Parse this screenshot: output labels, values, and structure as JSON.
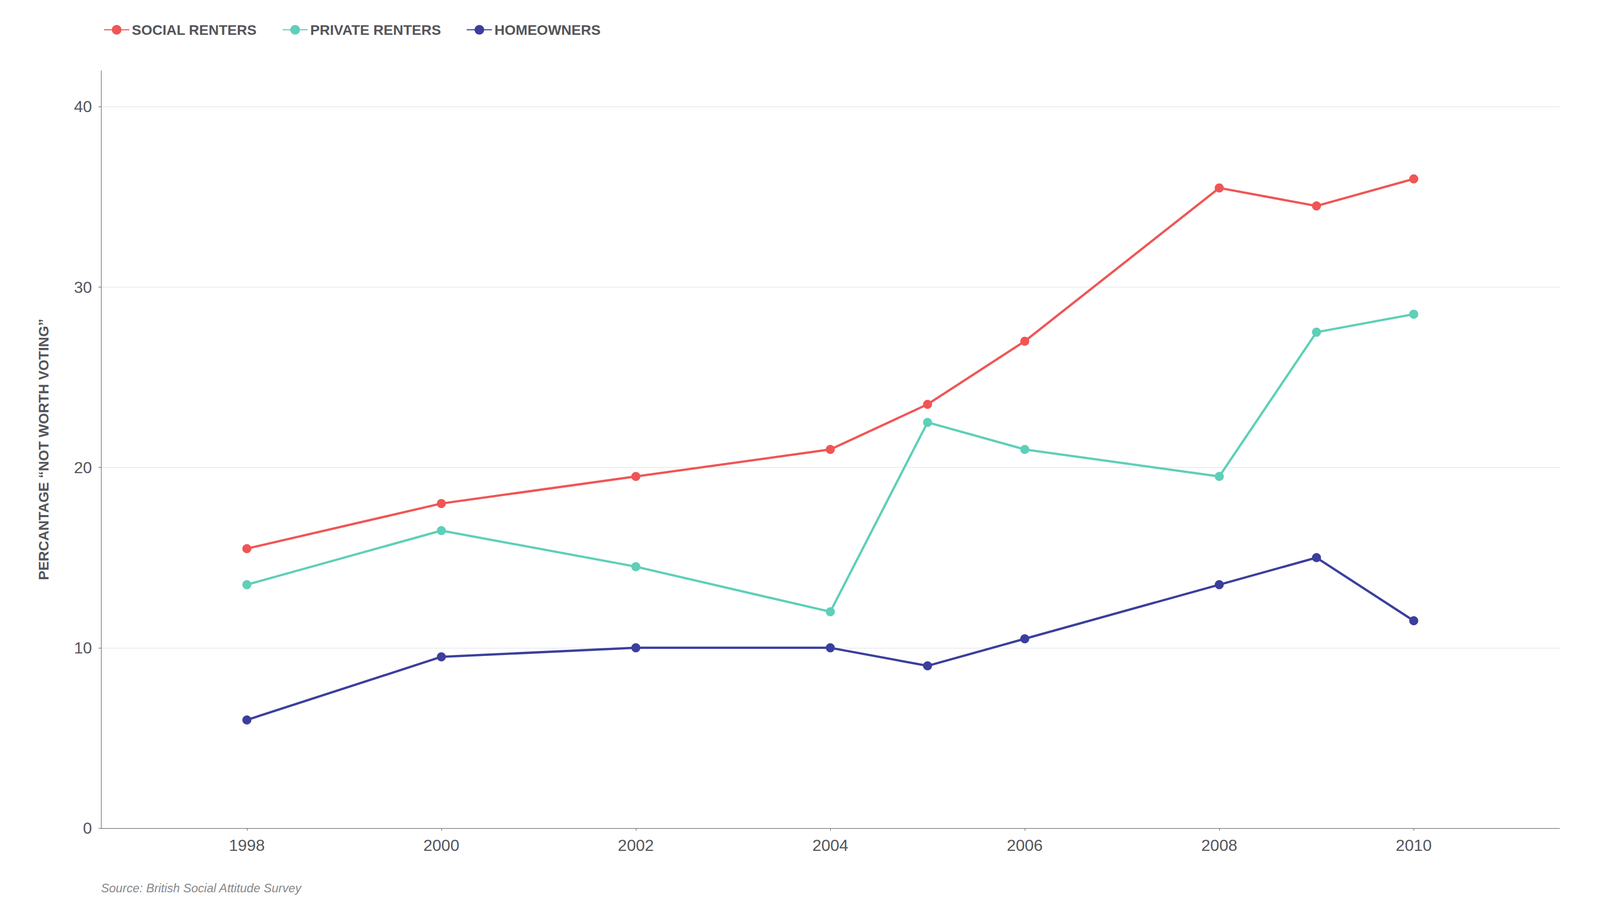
{
  "chart_data": {
    "type": "line",
    "y_label": "PERCANTAGE “NOT WORTH VOTING”",
    "annotations": [
      "Source: British Social Attitude Survey"
    ],
    "x": [
      1998,
      2000,
      2002,
      2004,
      2005,
      2006,
      2008,
      2009,
      2010
    ],
    "series": [
      {
        "name": "SOCIAL RENTERS",
        "color": "#F05555",
        "values": [
          15.5,
          18.0,
          19.5,
          21.0,
          23.5,
          27.0,
          35.5,
          34.5,
          36.0
        ]
      },
      {
        "name": "PRIVATE RENTERS",
        "color": "#5ECFB8",
        "values": [
          13.5,
          16.5,
          14.5,
          12.0,
          22.5,
          21.0,
          19.5,
          27.5,
          28.5
        ]
      },
      {
        "name": "HOMEOWNERS",
        "color": "#3B3F9C",
        "values": [
          6.0,
          9.5,
          10.0,
          10.0,
          9.0,
          10.5,
          13.5,
          15.0,
          11.5
        ]
      }
    ],
    "xlim": [
      1996.5,
      2011.5
    ],
    "xticks": [
      1998,
      2000,
      2002,
      2004,
      2006,
      2008,
      2010
    ],
    "ylim": [
      0,
      42
    ],
    "yticks": [
      0,
      10,
      20,
      30,
      40
    ],
    "grid": true,
    "legend": "upper left",
    "marker": "circle",
    "line_style": "solid",
    "background_color": "#FFFFFF"
  }
}
